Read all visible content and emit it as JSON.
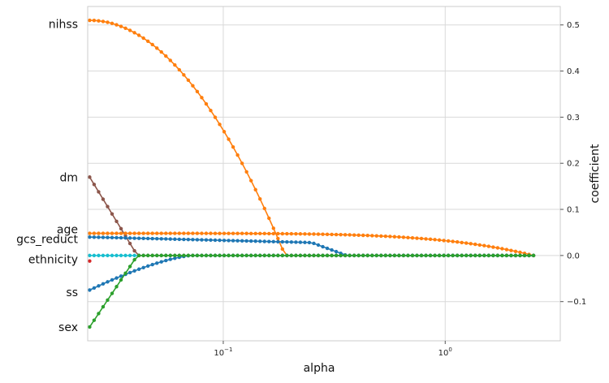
{
  "chart_data": {
    "type": "line",
    "xlabel": "alpha",
    "ylabel": "coefficient",
    "x_scale": "log",
    "xlim": [
      0.0245,
      3.3
    ],
    "ylim": [
      -0.185,
      0.54
    ],
    "grid": true,
    "x_ticks": [
      {
        "value": 0.1,
        "base": "10",
        "exp": "−1"
      },
      {
        "value": 1,
        "base": "10",
        "exp": "0"
      }
    ],
    "y_ticks": [
      {
        "value": -0.1,
        "label": "−0.1"
      },
      {
        "value": 0.0,
        "label": "0.0"
      },
      {
        "value": 0.1,
        "label": "0.1"
      },
      {
        "value": 0.2,
        "label": "0.2"
      },
      {
        "value": 0.3,
        "label": "0.3"
      },
      {
        "value": 0.4,
        "label": "0.4"
      },
      {
        "value": 0.5,
        "label": "0.5"
      }
    ],
    "alpha_range": [
      0.025,
      2.5
    ],
    "n_alphas": 100,
    "feature_labels": [
      {
        "text": "nihss",
        "y": 0.502
      },
      {
        "text": "dm",
        "y": 0.17
      },
      {
        "text": "age",
        "y": 0.057
      },
      {
        "text": "gcs_reduct",
        "y": 0.036
      },
      {
        "text": "ethnicity",
        "y": -0.008
      },
      {
        "text": "ss",
        "y": -0.079
      },
      {
        "text": "sex",
        "y": -0.155
      }
    ],
    "series": [
      {
        "color": "#17becf",
        "type": "zero"
      },
      {
        "color": "#ff7f0e",
        "type": "nihss",
        "y0": 0.51,
        "zero_at": 0.19,
        "shape": 2
      },
      {
        "color": "#8c564b",
        "type": "linear_to_zero",
        "y0": 0.17,
        "zero_at": 0.041
      },
      {
        "color": "#1f77b4",
        "type": "gcs_reduct",
        "y0": 0.04,
        "zero_at": 0.36
      },
      {
        "color": "#ff7f0e",
        "type": "age",
        "y0": 0.048,
        "zero_at": 2.5
      },
      {
        "color": "#1f77b4",
        "type": "ss",
        "y0": -0.075,
        "zero_at": 0.072
      },
      {
        "color": "#2ca02c",
        "type": "linear_to_zero",
        "y0": -0.155,
        "zero_at": 0.041
      },
      {
        "color": "#d62728",
        "type": "single",
        "y0": -0.012
      }
    ]
  }
}
